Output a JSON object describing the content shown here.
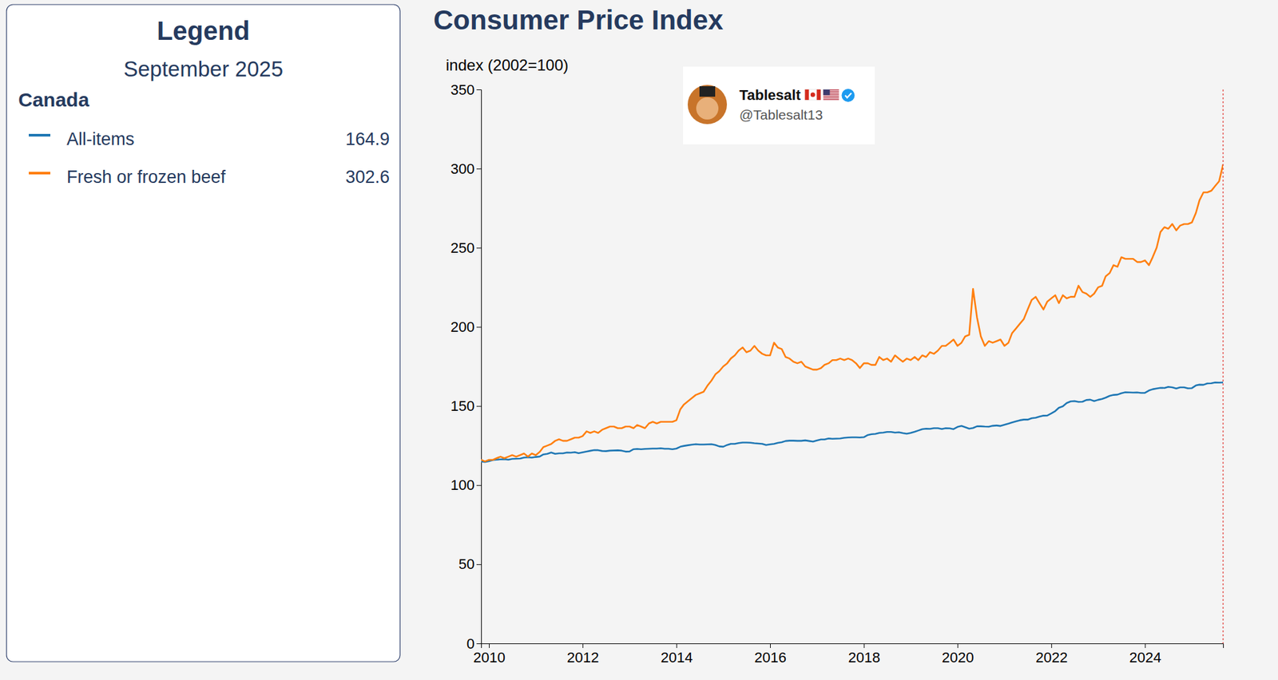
{
  "chart_data": {
    "type": "line",
    "title": "Consumer Price Index",
    "y_label": "index (2002=100)",
    "legend_title": "Legend",
    "legend_date": "September 2025",
    "legend_group": "Canada",
    "legend": "left",
    "annotations": [
      "Tablesalt",
      "@Tablesalt13"
    ],
    "grid": false,
    "xlim": [
      "2009-11",
      "2025-09"
    ],
    "xticks": [
      {
        "value": "2010-01",
        "label": "2010"
      },
      {
        "value": "2012-01",
        "label": "2012"
      },
      {
        "value": "2014-01",
        "label": "2014"
      },
      {
        "value": "2016-01",
        "label": "2016"
      },
      {
        "value": "2018-01",
        "label": "2018"
      },
      {
        "value": "2020-01",
        "label": "2020"
      },
      {
        "value": "2022-01",
        "label": "2022"
      },
      {
        "value": "2024-01",
        "label": "2024"
      }
    ],
    "ylim": [
      0,
      350
    ],
    "yticks": [
      0,
      50,
      100,
      150,
      200,
      250,
      300,
      350
    ],
    "x": [
      "2009-11",
      "2009-12",
      "2010-01",
      "2010-02",
      "2010-03",
      "2010-04",
      "2010-05",
      "2010-06",
      "2010-07",
      "2010-08",
      "2010-09",
      "2010-10",
      "2010-11",
      "2010-12",
      "2011-01",
      "2011-02",
      "2011-03",
      "2011-04",
      "2011-05",
      "2011-06",
      "2011-07",
      "2011-08",
      "2011-09",
      "2011-10",
      "2011-11",
      "2011-12",
      "2012-01",
      "2012-02",
      "2012-03",
      "2012-04",
      "2012-05",
      "2012-06",
      "2012-07",
      "2012-08",
      "2012-09",
      "2012-10",
      "2012-11",
      "2012-12",
      "2013-01",
      "2013-02",
      "2013-03",
      "2013-04",
      "2013-05",
      "2013-06",
      "2013-07",
      "2013-08",
      "2013-09",
      "2013-10",
      "2013-11",
      "2013-12",
      "2014-01",
      "2014-02",
      "2014-03",
      "2014-04",
      "2014-05",
      "2014-06",
      "2014-07",
      "2014-08",
      "2014-09",
      "2014-10",
      "2014-11",
      "2014-12",
      "2015-01",
      "2015-02",
      "2015-03",
      "2015-04",
      "2015-05",
      "2015-06",
      "2015-07",
      "2015-08",
      "2015-09",
      "2015-10",
      "2015-11",
      "2015-12",
      "2016-01",
      "2016-02",
      "2016-03",
      "2016-04",
      "2016-05",
      "2016-06",
      "2016-07",
      "2016-08",
      "2016-09",
      "2016-10",
      "2016-11",
      "2016-12",
      "2017-01",
      "2017-02",
      "2017-03",
      "2017-04",
      "2017-05",
      "2017-06",
      "2017-07",
      "2017-08",
      "2017-09",
      "2017-10",
      "2017-11",
      "2017-12",
      "2018-01",
      "2018-02",
      "2018-03",
      "2018-04",
      "2018-05",
      "2018-06",
      "2018-07",
      "2018-08",
      "2018-09",
      "2018-10",
      "2018-11",
      "2018-12",
      "2019-01",
      "2019-02",
      "2019-03",
      "2019-04",
      "2019-05",
      "2019-06",
      "2019-07",
      "2019-08",
      "2019-09",
      "2019-10",
      "2019-11",
      "2019-12",
      "2020-01",
      "2020-02",
      "2020-03",
      "2020-04",
      "2020-05",
      "2020-06",
      "2020-07",
      "2020-08",
      "2020-09",
      "2020-10",
      "2020-11",
      "2020-12",
      "2021-01",
      "2021-02",
      "2021-03",
      "2021-04",
      "2021-05",
      "2021-06",
      "2021-07",
      "2021-08",
      "2021-09",
      "2021-10",
      "2021-11",
      "2021-12",
      "2022-01",
      "2022-02",
      "2022-03",
      "2022-04",
      "2022-05",
      "2022-06",
      "2022-07",
      "2022-08",
      "2022-09",
      "2022-10",
      "2022-11",
      "2022-12",
      "2023-01",
      "2023-02",
      "2023-03",
      "2023-04",
      "2023-05",
      "2023-06",
      "2023-07",
      "2023-08",
      "2023-09",
      "2023-10",
      "2023-11",
      "2023-12",
      "2024-01",
      "2024-02",
      "2024-03",
      "2024-04",
      "2024-05",
      "2024-06",
      "2024-07",
      "2024-08",
      "2024-09",
      "2024-10",
      "2024-11",
      "2024-12",
      "2025-01",
      "2025-02",
      "2025-03",
      "2025-04",
      "2025-05",
      "2025-06",
      "2025-07",
      "2025-08",
      "2025-09"
    ],
    "series": [
      {
        "name": "All-items",
        "color": "#1f77b4",
        "values": [
          115.0,
          114.6,
          115.2,
          115.9,
          116.1,
          116.3,
          116.4,
          116.1,
          116.6,
          116.7,
          116.8,
          117.4,
          117.6,
          117.4,
          117.8,
          118.1,
          119.4,
          119.8,
          120.6,
          119.8,
          120.1,
          120.1,
          120.6,
          120.5,
          120.8,
          120.2,
          120.7,
          121.2,
          121.7,
          122.2,
          122.1,
          121.6,
          121.5,
          121.8,
          121.9,
          122.0,
          121.8,
          121.2,
          121.3,
          122.7,
          122.9,
          122.7,
          122.9,
          123.0,
          123.1,
          123.1,
          123.3,
          123.0,
          123.0,
          122.7,
          123.1,
          124.3,
          124.8,
          125.2,
          125.6,
          125.9,
          125.7,
          125.7,
          125.8,
          125.9,
          125.4,
          124.5,
          124.3,
          125.4,
          126.1,
          126.1,
          126.6,
          126.9,
          126.9,
          126.8,
          126.5,
          126.3,
          126.1,
          125.4,
          125.8,
          126.1,
          126.7,
          127.1,
          127.9,
          128.1,
          128.1,
          128.0,
          128.0,
          128.3,
          127.9,
          127.5,
          128.3,
          128.9,
          128.9,
          129.5,
          129.3,
          129.4,
          129.5,
          129.9,
          130.1,
          130.2,
          130.2,
          130.1,
          130.3,
          131.7,
          132.2,
          132.4,
          133.0,
          133.2,
          133.6,
          133.6,
          133.2,
          133.4,
          132.9,
          132.5,
          133.0,
          133.7,
          134.5,
          135.4,
          135.7,
          135.6,
          136.0,
          136.0,
          135.5,
          136.0,
          135.9,
          135.4,
          136.8,
          137.4,
          136.6,
          135.7,
          136.1,
          137.2,
          137.2,
          137.0,
          136.9,
          137.5,
          137.7,
          137.4,
          138.2,
          138.9,
          139.6,
          140.3,
          141.0,
          141.4,
          141.4,
          142.3,
          142.6,
          143.3,
          143.9,
          144.0,
          145.3,
          146.8,
          148.9,
          149.8,
          151.9,
          152.9,
          153.1,
          152.6,
          152.7,
          153.8,
          154.0,
          153.1,
          153.9,
          154.5,
          155.3,
          156.4,
          157.0,
          157.2,
          158.1,
          158.7,
          158.6,
          158.5,
          158.6,
          158.3,
          158.3,
          159.8,
          160.6,
          161.1,
          161.5,
          161.4,
          162.1,
          161.8,
          161.1,
          161.8,
          161.8,
          161.2,
          161.3,
          163.0,
          163.5,
          163.4,
          164.3,
          164.4,
          164.9,
          164.8,
          164.9
        ]
      },
      {
        "name": "Fresh or frozen beef",
        "color": "#ff7f0e",
        "values": [
          116,
          115,
          116,
          116,
          117,
          118,
          117,
          118,
          119,
          118,
          119,
          120,
          118,
          120,
          119,
          121,
          124,
          125,
          126,
          128,
          129,
          128,
          128,
          129,
          130,
          130,
          131,
          134,
          133,
          134,
          133,
          135,
          136,
          137,
          137,
          136,
          136,
          137,
          137,
          136,
          138,
          137,
          136,
          139,
          140,
          139,
          140,
          140,
          140,
          140,
          141,
          148,
          151,
          153,
          155,
          157,
          158,
          159,
          163,
          166,
          170,
          172,
          175,
          177,
          180,
          182,
          185,
          187,
          184,
          185,
          188,
          185,
          183,
          182,
          182,
          190,
          187,
          186,
          181,
          180,
          178,
          177,
          178,
          175,
          174,
          173,
          173,
          174,
          176,
          177,
          179,
          179,
          180,
          179,
          180,
          179,
          177,
          174,
          177,
          177,
          176,
          176,
          181,
          179,
          180,
          178,
          182,
          180,
          178,
          180,
          179,
          181,
          179,
          182,
          181,
          184,
          183,
          185,
          188,
          188,
          190,
          192,
          188,
          190,
          194,
          195,
          224,
          206,
          194,
          188,
          191,
          190,
          191,
          192,
          188,
          190,
          196,
          199,
          202,
          205,
          211,
          217,
          219,
          215,
          211,
          216,
          218,
          220,
          215,
          220,
          218,
          219,
          219,
          226,
          222,
          221,
          219,
          221,
          225,
          226,
          232,
          234,
          239,
          238,
          244,
          243,
          243,
          243,
          241,
          241,
          242,
          239,
          244,
          250,
          260,
          263,
          262,
          265,
          261,
          264,
          265,
          265,
          266,
          272,
          280,
          285,
          285,
          286,
          289,
          292,
          302.6
        ]
      }
    ]
  }
}
